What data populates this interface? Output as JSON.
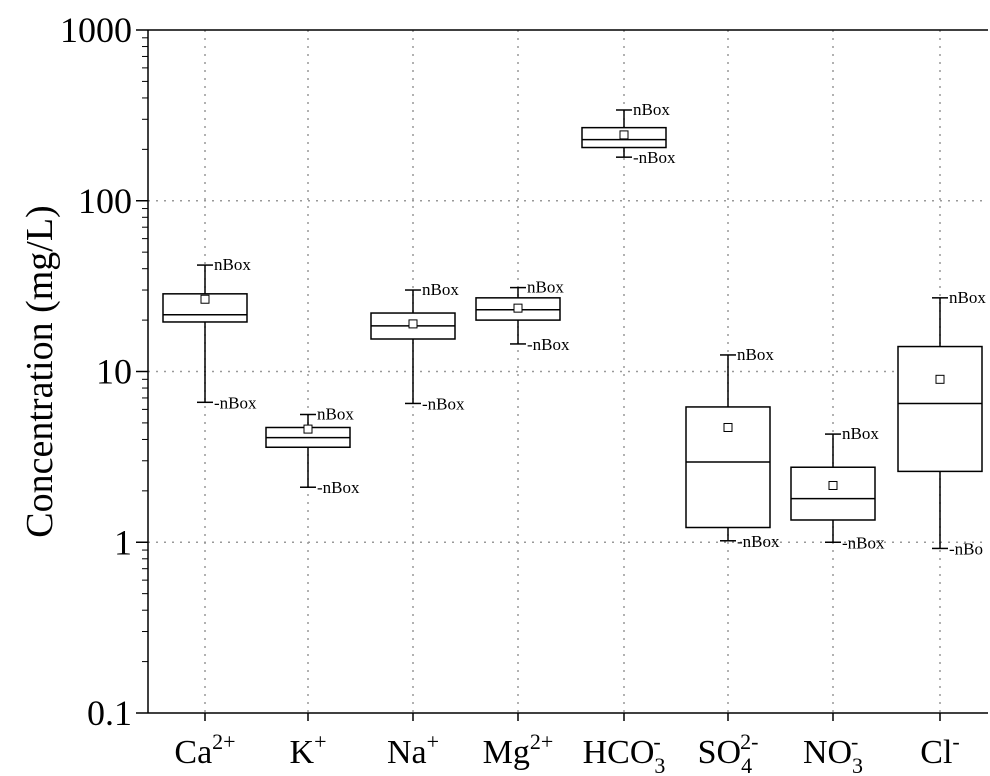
{
  "chart_data": {
    "type": "box",
    "ylabel": "Concentration (mg/L)",
    "yscale": "log",
    "ylim": [
      0.1,
      1000
    ],
    "yticks": [
      "0.1",
      "1",
      "10",
      "100",
      "1000"
    ],
    "grid": true,
    "series": [
      {
        "cat": {
          "base": "Ca",
          "sup": "2+"
        },
        "whisker_low": 6.6,
        "q1": 19.5,
        "median": 21.5,
        "q3": 28.5,
        "whisker_high": 42,
        "mean": 26.5,
        "label_high": "nBox",
        "label_low": "-nBox"
      },
      {
        "cat": {
          "base": "K",
          "sup": "+"
        },
        "whisker_low": 2.1,
        "q1": 3.6,
        "median": 4.1,
        "q3": 4.7,
        "whisker_high": 5.6,
        "mean": 4.6,
        "label_high": "nBox",
        "label_low": "-nBox"
      },
      {
        "cat": {
          "base": "Na",
          "sup": "+"
        },
        "whisker_low": 6.5,
        "q1": 15.5,
        "median": 18.5,
        "q3": 22,
        "whisker_high": 30,
        "mean": 19,
        "label_high": "nBox",
        "label_low": "-nBox"
      },
      {
        "cat": {
          "base": "Mg",
          "sup": "2+"
        },
        "whisker_low": 14.5,
        "q1": 20,
        "median": 23,
        "q3": 27,
        "whisker_high": 31,
        "mean": 23.5,
        "label_high": "nBox",
        "label_low": "-nBox"
      },
      {
        "cat": {
          "base": "HCO",
          "sub": "3",
          "sup": "-"
        },
        "whisker_low": 180,
        "q1": 205,
        "median": 228,
        "q3": 268,
        "whisker_high": 340,
        "mean": 243,
        "label_high": "nBox",
        "label_low": "-nBox"
      },
      {
        "cat": {
          "base": "SO",
          "sub": "4",
          "sup": "2-"
        },
        "whisker_low": 1.02,
        "q1": 1.22,
        "median": 2.95,
        "q3": 6.2,
        "whisker_high": 12.5,
        "mean": 4.7,
        "label_high": "nBox",
        "label_low": "-nBox"
      },
      {
        "cat": {
          "base": "NO",
          "sub": "3",
          "sup": "-"
        },
        "whisker_low": 1.0,
        "q1": 1.35,
        "median": 1.8,
        "q3": 2.75,
        "whisker_high": 4.3,
        "mean": 2.15,
        "label_high": "nBox",
        "label_low": "-nBox"
      },
      {
        "cat": {
          "base": "Cl",
          "sup": "-"
        },
        "whisker_low": 0.92,
        "q1": 2.6,
        "median": 6.5,
        "q3": 14,
        "whisker_high": 27,
        "mean": 9,
        "label_high": "nBox",
        "label_low": "-nBo"
      }
    ]
  }
}
